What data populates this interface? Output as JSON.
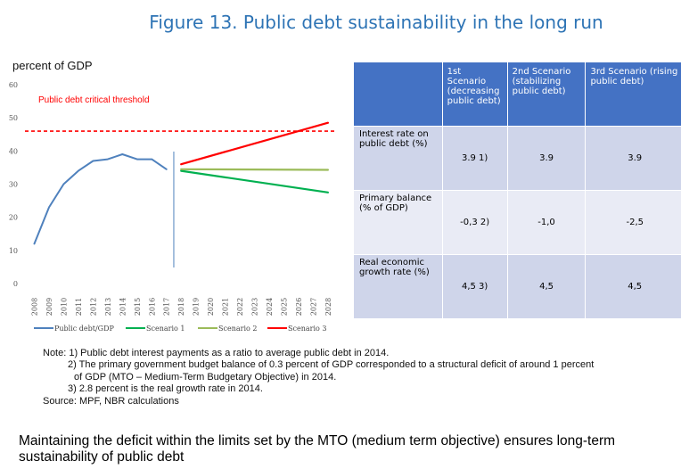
{
  "title": "Figure 13. Public debt sustainability in the long run",
  "chart_data": {
    "type": "line",
    "ylabel": "percent of GDP",
    "ylim": [
      0,
      60
    ],
    "yticks": [
      0,
      10,
      20,
      30,
      40,
      50,
      60
    ],
    "x": [
      "2008",
      "2009",
      "2010",
      "2011",
      "2012",
      "2013",
      "2014",
      "2015",
      "2016",
      "2017",
      "2018",
      "2019",
      "2020",
      "2021",
      "2022",
      "2023",
      "2024",
      "2025",
      "2026",
      "2027",
      "2028"
    ],
    "threshold": {
      "label": "Public debt critical threshold",
      "value": 46,
      "color": "#ff0000"
    },
    "divider_year": "2017.5",
    "series": [
      {
        "name": "Public debt/GDP",
        "color": "#4f81bd",
        "x": [
          "2008",
          "2009",
          "2010",
          "2011",
          "2012",
          "2013",
          "2014",
          "2015",
          "2016",
          "2017"
        ],
        "values": [
          12,
          23,
          30,
          34,
          37,
          37.5,
          39,
          37.5,
          37.5,
          34.5
        ]
      },
      {
        "name": "Scenario 1",
        "color": "#00b050",
        "x": [
          "2018",
          "2028"
        ],
        "values": [
          34,
          27.5
        ]
      },
      {
        "name": "Scenario 2",
        "color": "#9bbb59",
        "x": [
          "2018",
          "2028"
        ],
        "values": [
          34.5,
          34.3
        ]
      },
      {
        "name": "Scenario 3",
        "color": "#ff0000",
        "x": [
          "2018",
          "2028"
        ],
        "values": [
          36,
          48.5
        ]
      }
    ]
  },
  "table": {
    "headers": [
      "",
      "1st Scenario (decreasing public debt)",
      "2nd Scenario (stabilizing public debt)",
      "3rd Scenario (rising public debt)"
    ],
    "rows": [
      {
        "label": "Interest rate on public debt (%)",
        "values": [
          "3.9 1)",
          "3.9",
          "3.9"
        ]
      },
      {
        "label": "Primary balance (% of GDP)",
        "values": [
          "-0,3 2)",
          "-1,0",
          "-2,5"
        ]
      },
      {
        "label": "Real economic growth rate (%)",
        "values": [
          "4,5 3)",
          "4,5",
          "4,5"
        ]
      }
    ]
  },
  "notes": {
    "n1": "Note: 1) Public debt interest payments as a ratio to average public debt in 2014.",
    "n2a": "2) The primary government budget balance of 0.3 percent of GDP corresponded to a structural deficit of around 1 percent",
    "n2b": "of GDP (MTO – Medium-Term Budgetary Objective) in 2014.",
    "n3": "3) 2.8 percent is the real growth rate in 2014.",
    "source": "Source: MPF, NBR calculations"
  },
  "conclusion": "Maintaining the deficit within the limits set by the MTO (medium term objective) ensures long-term sustainability of public debt"
}
